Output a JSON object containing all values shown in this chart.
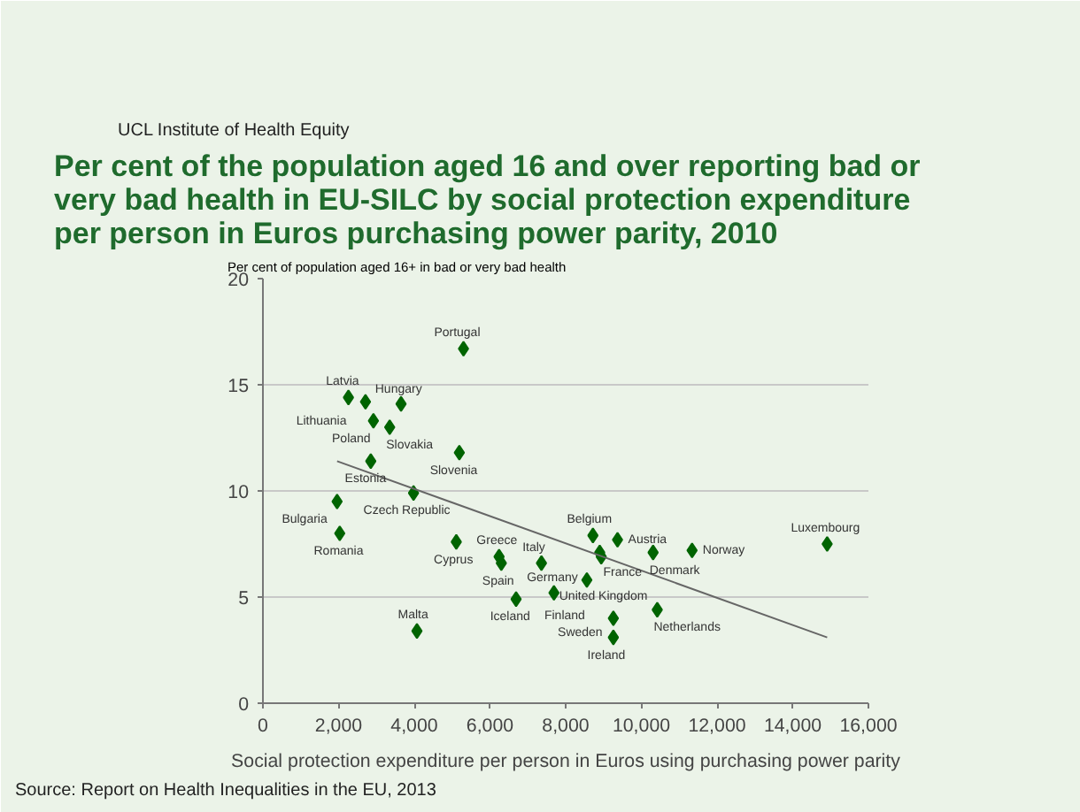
{
  "chart_data": {
    "type": "scatter",
    "title": "Per cent of the population aged 16 and over reporting bad or very bad health in EU-SILC by social protection expenditure per person in Euros purchasing power parity, 2010",
    "xlabel": "Social protection expenditure per person in Euros using purchasing power parity",
    "ylabel": "Per cent of population aged 16+ in bad or very bad health",
    "x": [
      5300,
      2260,
      2710,
      3650,
      2920,
      3350,
      5190,
      2850,
      3980,
      1960,
      2030,
      5110,
      6240,
      6300,
      7360,
      6690,
      7690,
      4070,
      8720,
      9370,
      8900,
      8940,
      10310,
      11340,
      14910,
      8560,
      10420,
      9260,
      9260
    ],
    "series": [
      {
        "color": "#006400",
        "marker": "diamond",
        "values": [
          16.7,
          14.4,
          14.2,
          14.1,
          13.3,
          13.0,
          11.8,
          11.4,
          9.9,
          9.5,
          8.0,
          7.6,
          6.9,
          6.6,
          6.6,
          4.9,
          5.2,
          3.4,
          7.9,
          7.7,
          7.1,
          6.9,
          7.1,
          7.2,
          7.5,
          5.8,
          4.4,
          4.0,
          3.1
        ]
      },
      {
        "type": "line",
        "color": "#666666",
        "x": [
          1960,
          14910
        ],
        "values": [
          11.4,
          3.1
        ]
      }
    ],
    "annotations": [
      {
        "text": "Portugal",
        "x": 5300,
        "y": 16.7
      },
      {
        "text": "Latvia",
        "x": 2260,
        "y": 14.4
      },
      {
        "text": "Lithuania",
        "x": 2710,
        "y": 14.2
      },
      {
        "text": "Hungary",
        "x": 3650,
        "y": 14.05
      },
      {
        "text": "Poland",
        "x": 2920,
        "y": 13.3
      },
      {
        "text": "Slovakia",
        "x": 3350,
        "y": 13.0
      },
      {
        "text": "Slovenia",
        "x": 5190,
        "y": 11.8
      },
      {
        "text": "Estonia",
        "x": 2850,
        "y": 11.4
      },
      {
        "text": "Czech Republic",
        "x": 3980,
        "y": 9.9
      },
      {
        "text": "Bulgaria",
        "x": 1960,
        "y": 9.5
      },
      {
        "text": "Romania",
        "x": 2030,
        "y": 8.0
      },
      {
        "text": "Cyprus",
        "x": 5110,
        "y": 7.6
      },
      {
        "text": "Greece",
        "x": 6240,
        "y": 6.9
      },
      {
        "text": "Spain",
        "x": 6300,
        "y": 6.6
      },
      {
        "text": "Italy",
        "x": 7360,
        "y": 6.6
      },
      {
        "text": "Iceland",
        "x": 6690,
        "y": 4.9
      },
      {
        "text": "United Kingdom",
        "x": 7690,
        "y": 5.2
      },
      {
        "text": "Malta",
        "x": 4070,
        "y": 3.4
      },
      {
        "text": "Belgium",
        "x": 8720,
        "y": 7.9
      },
      {
        "text": "Austria",
        "x": 9370,
        "y": 7.7
      },
      {
        "text": "France",
        "x": 8900,
        "y": 7.1
      },
      {
        "text": "Germany",
        "x": 8940,
        "y": 6.9
      },
      {
        "text": "Denmark",
        "x": 10310,
        "y": 7.1
      },
      {
        "text": "Norway",
        "x": 11340,
        "y": 7.2
      },
      {
        "text": "Luxembourg",
        "x": 14910,
        "y": 7.5
      },
      {
        "text": "Finland",
        "x": 8560,
        "y": 5.8
      },
      {
        "text": "Netherlands",
        "x": 10420,
        "y": 4.4
      },
      {
        "text": "Sweden",
        "x": 9260,
        "y": 4.0
      },
      {
        "text": "Ireland",
        "x": 9260,
        "y": 3.1
      },
      "UCL Institute of Health Equity",
      "Source: Report on Health Inequalities in the EU, 2013"
    ],
    "xlim": [
      0,
      16000
    ],
    "xticks": [
      {
        "value": 0,
        "label": "0"
      },
      {
        "value": 2000,
        "label": "2,000"
      },
      {
        "value": 4000,
        "label": "4,000"
      },
      {
        "value": 6000,
        "label": "6,000"
      },
      {
        "value": 8000,
        "label": "8,000"
      },
      {
        "value": 10000,
        "label": "10,000"
      },
      {
        "value": 12000,
        "label": "12,000"
      },
      {
        "value": 14000,
        "label": "14,000"
      },
      {
        "value": 16000,
        "label": "16,000"
      }
    ],
    "ylim": [
      0,
      20
    ],
    "yticks": [
      0,
      5,
      10,
      15,
      20
    ],
    "grid": "y"
  }
}
